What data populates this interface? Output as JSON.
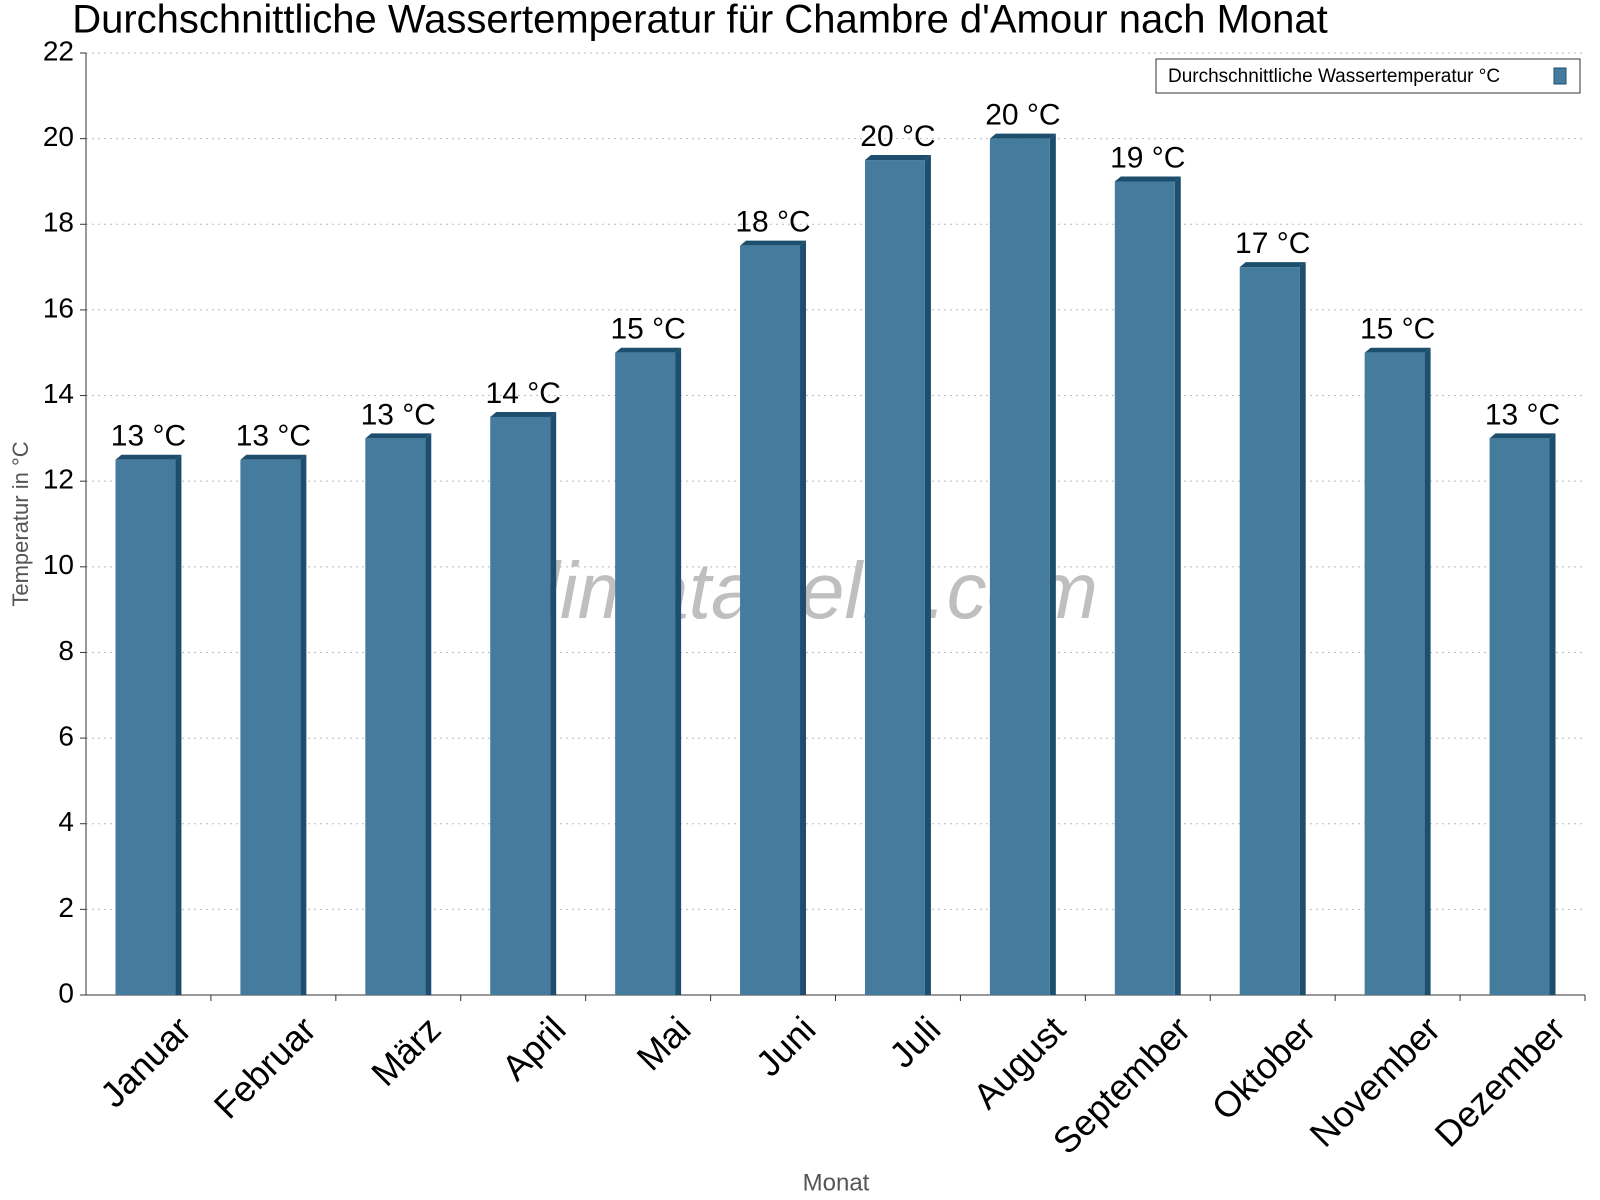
{
  "chart_data": {
    "type": "bar",
    "title": "Durchschnittliche Wassertemperatur für Chambre d'Amour nach Monat",
    "x_label": "Monat",
    "y_label": "Temperatur in °C",
    "watermark": "klimatabelle.com",
    "categories": [
      "Januar",
      "Februar",
      "März",
      "April",
      "Mai",
      "Juni",
      "Juli",
      "August",
      "September",
      "Oktober",
      "November",
      "Dezember"
    ],
    "series": [
      {
        "name": "Durchschnittliche Wassertemperatur °C",
        "color": "#457b9d",
        "values": [
          12.5,
          12.5,
          13,
          13.5,
          15,
          17.5,
          19.5,
          20,
          19,
          17,
          15,
          13
        ],
        "value_labels": [
          "13 °C",
          "13 °C",
          "13 °C",
          "14 °C",
          "15 °C",
          "18 °C",
          "20 °C",
          "20 °C",
          "19 °C",
          "17 °C",
          "15 °C",
          "13 °C"
        ]
      }
    ],
    "ylim": [
      0,
      22
    ],
    "yticks": [
      0,
      2,
      4,
      6,
      8,
      10,
      12,
      14,
      16,
      18,
      20,
      22
    ],
    "grid": true,
    "legend": "top-right"
  }
}
